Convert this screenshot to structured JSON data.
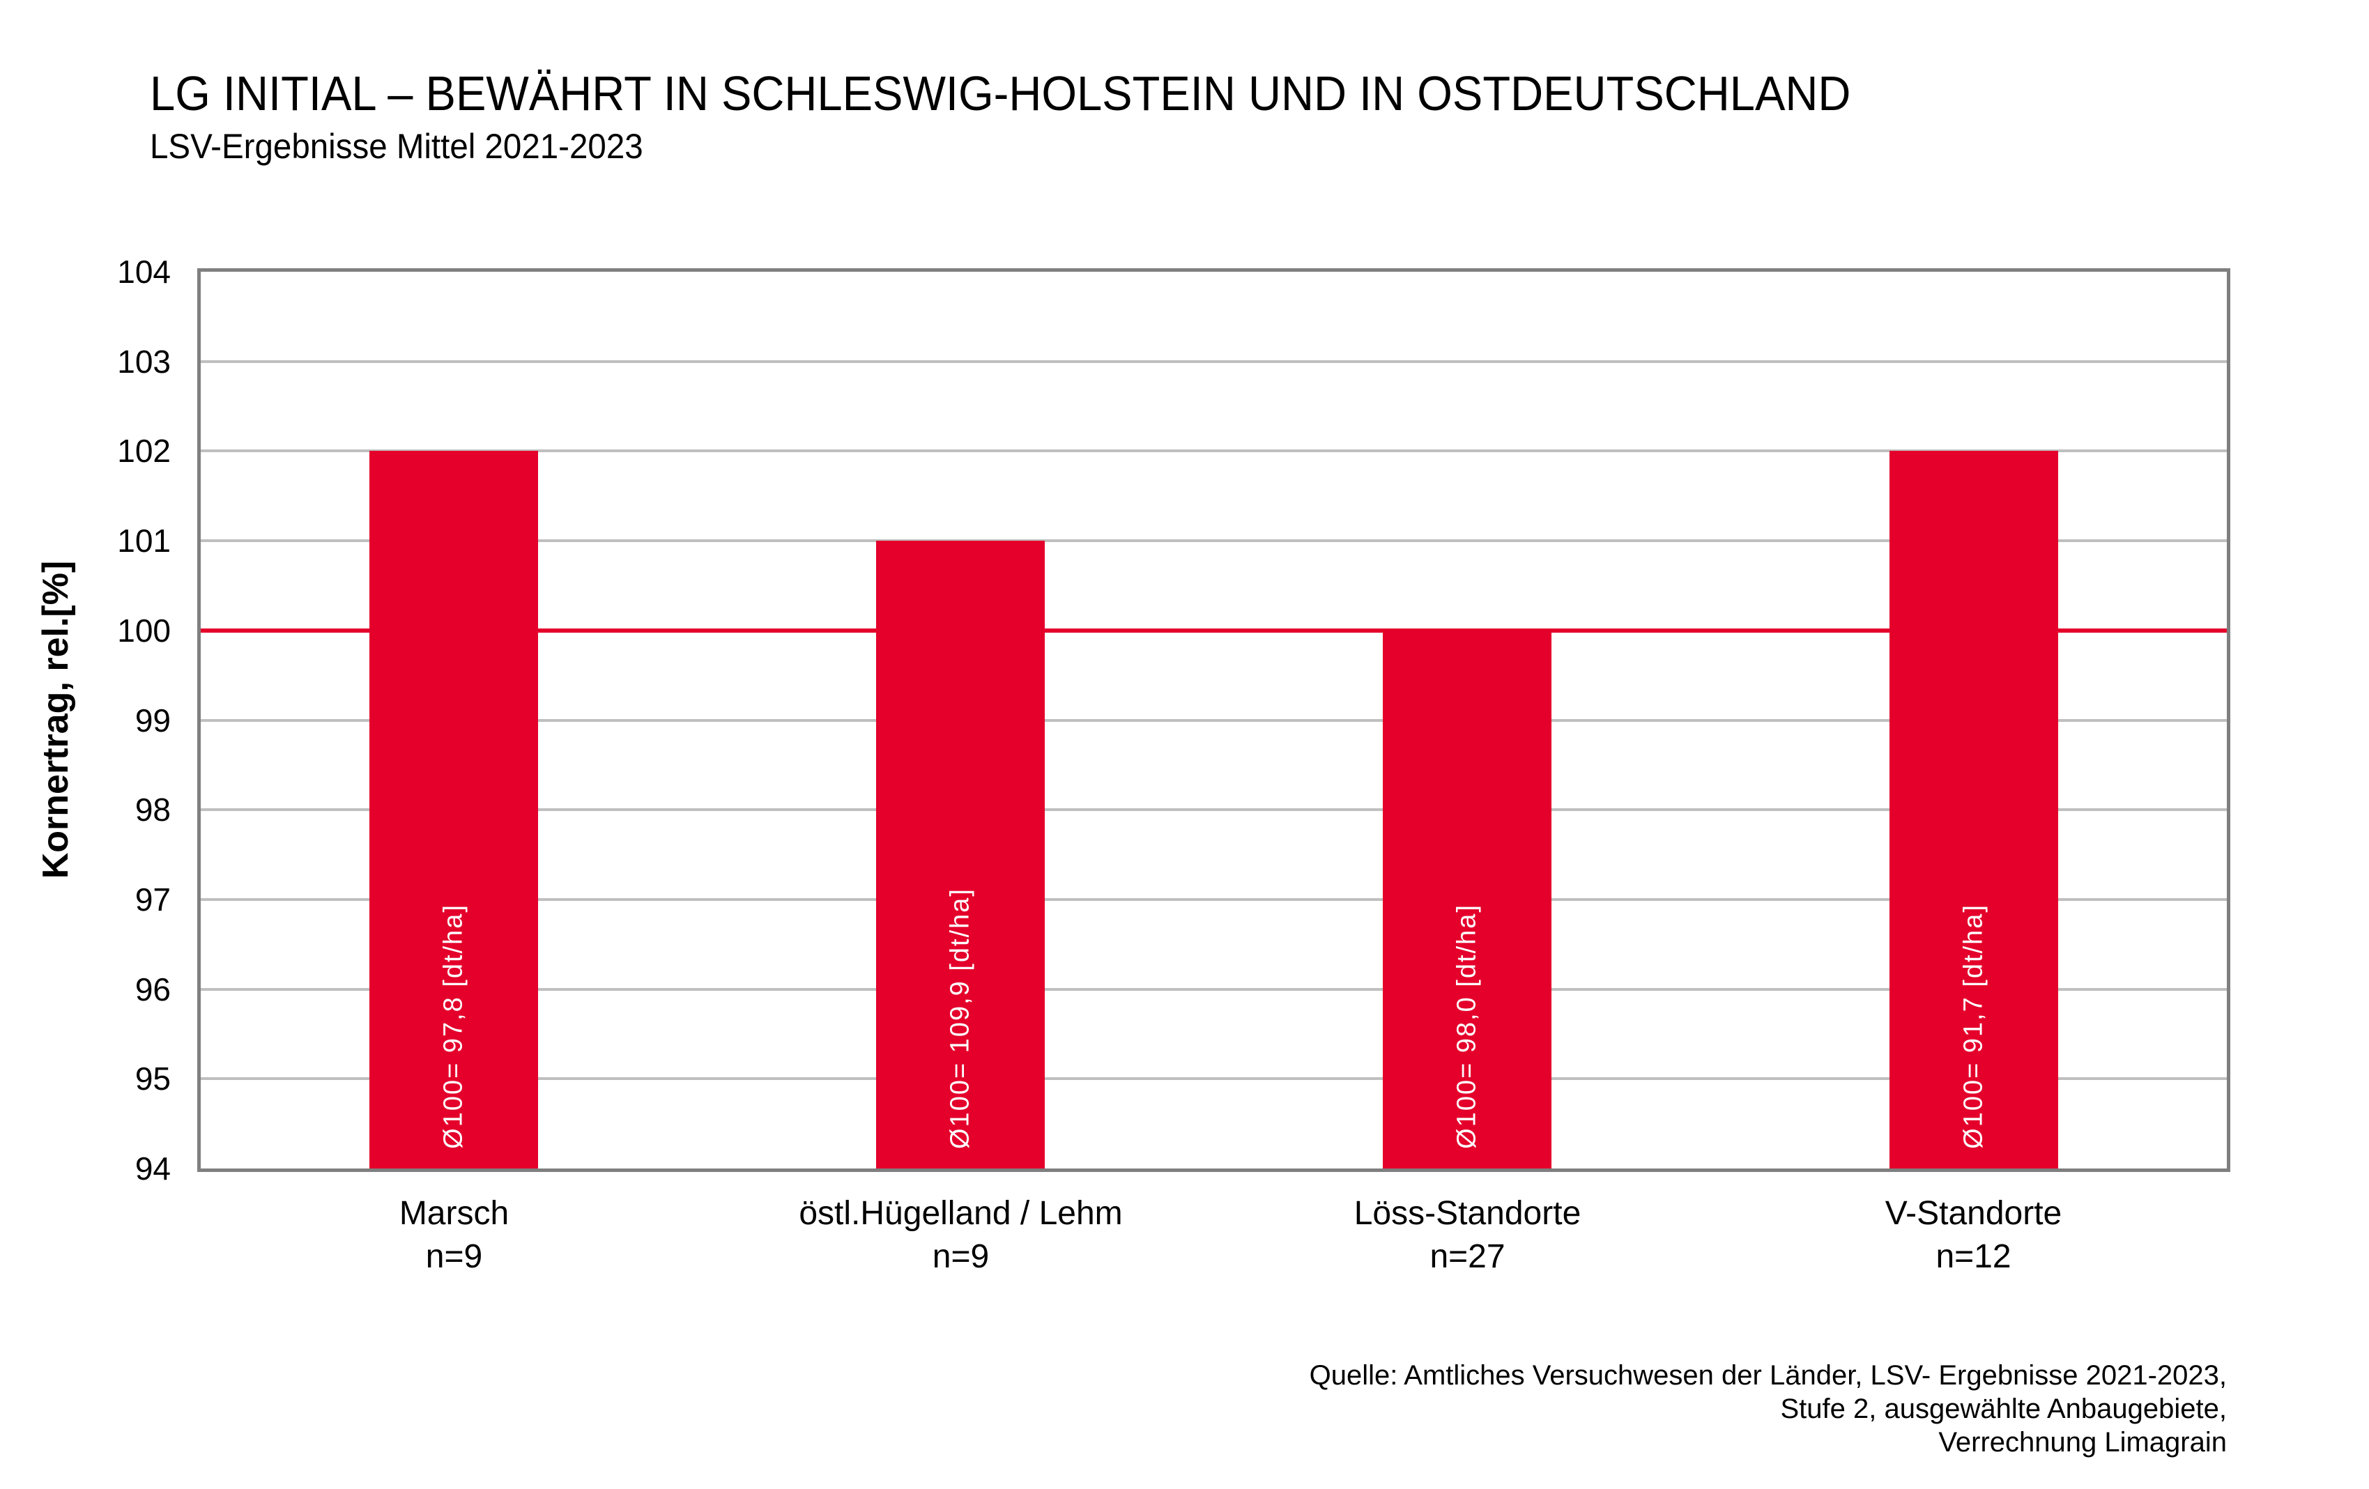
{
  "chart_data": {
    "type": "bar",
    "title": "LG INITIAL – BEWÄHRT IN SCHLESWIG-HOLSTEIN UND IN OSTDEUTSCHLAND",
    "subtitle": "LSV-Ergebnisse Mittel 2021-2023",
    "ylabel": "Kornertrag, rel.[%]",
    "ylim": [
      94,
      104
    ],
    "ytick_step": 1,
    "grid": true,
    "legend": false,
    "reference_line_y": 100,
    "categories": [
      "Marsch",
      "östl.Hügelland / Lehm",
      "Löss-Standorte",
      "V-Standorte"
    ],
    "n_labels": [
      "n=9",
      "n=9",
      "n=27",
      "n=12"
    ],
    "values": [
      102,
      101,
      100,
      102
    ],
    "bar_value_labels": [
      "Ø100= 97,8 [dt/ha]",
      "Ø100= 109,9 [dt/ha]",
      "Ø100= 98,0 [dt/ha]",
      "Ø100= 91,7 [dt/ha]"
    ]
  },
  "source": {
    "lines": [
      "Quelle: Amtliches Versuchwesen der Länder, LSV- Ergebnisse 2021-2023,",
      "Stufe 2, ausgewählte Anbaugebiete,",
      "Verrechnung Limagrain"
    ]
  },
  "colors": {
    "bar": "#E4002B",
    "reference_line": "#E4002B",
    "gridline": "#BFBFBF",
    "plot_border": "#7F7F7F",
    "bar_label_text": "#FFFFFF",
    "text": "#000000",
    "background": "#FFFFFF"
  }
}
